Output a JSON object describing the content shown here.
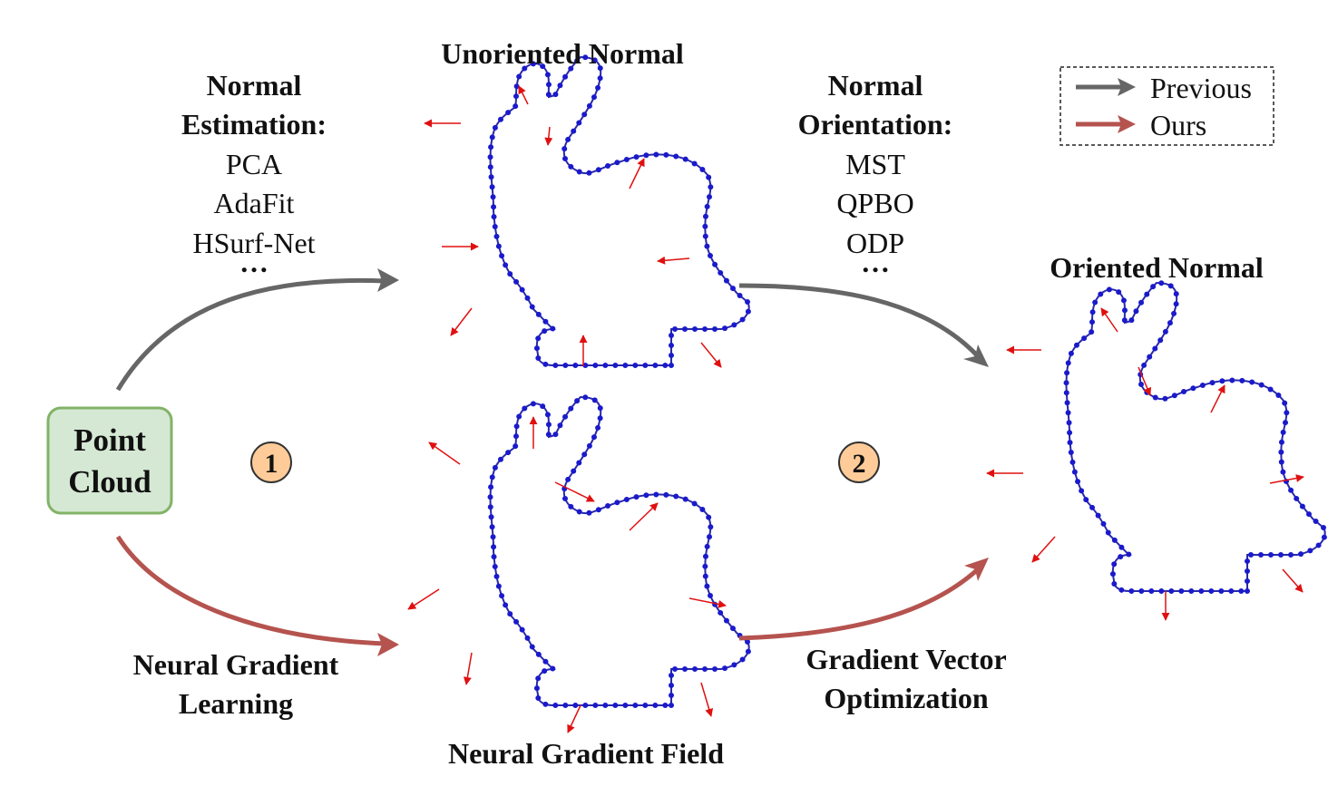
{
  "start_node": {
    "line1": "Point",
    "line2": "Cloud"
  },
  "legend": {
    "previous": "Previous",
    "ours": "Ours"
  },
  "colors": {
    "previous_arrow": "#666666",
    "ours_arrow": "#b5534f",
    "outline": "#2a2aa8",
    "points": "#1a1acc",
    "normals": "#e01010",
    "node_fill": "#d5e8d4",
    "node_stroke": "#82b366",
    "step_fill": "#ffcc99"
  },
  "steps": {
    "one": "1",
    "two": "2"
  },
  "top_path": {
    "stage1_title_line1": "Normal",
    "stage1_title_line2": "Estimation:",
    "stage1_methods": [
      "PCA",
      "AdaFit",
      "HSurf-Net",
      "…"
    ],
    "stage2_title_line1": "Normal",
    "stage2_title_line2": "Orientation:",
    "stage2_methods": [
      "MST",
      "QPBO",
      "ODP",
      "…"
    ]
  },
  "bottom_path": {
    "stage1_line1": "Neural Gradient",
    "stage1_line2": "Learning",
    "stage2_line1": "Gradient Vector",
    "stage2_line2": "Optimization"
  },
  "shapes": {
    "unoriented": "Unoriented Normal",
    "field": "Neural Gradient Field",
    "oriented": "Oriented Normal"
  }
}
